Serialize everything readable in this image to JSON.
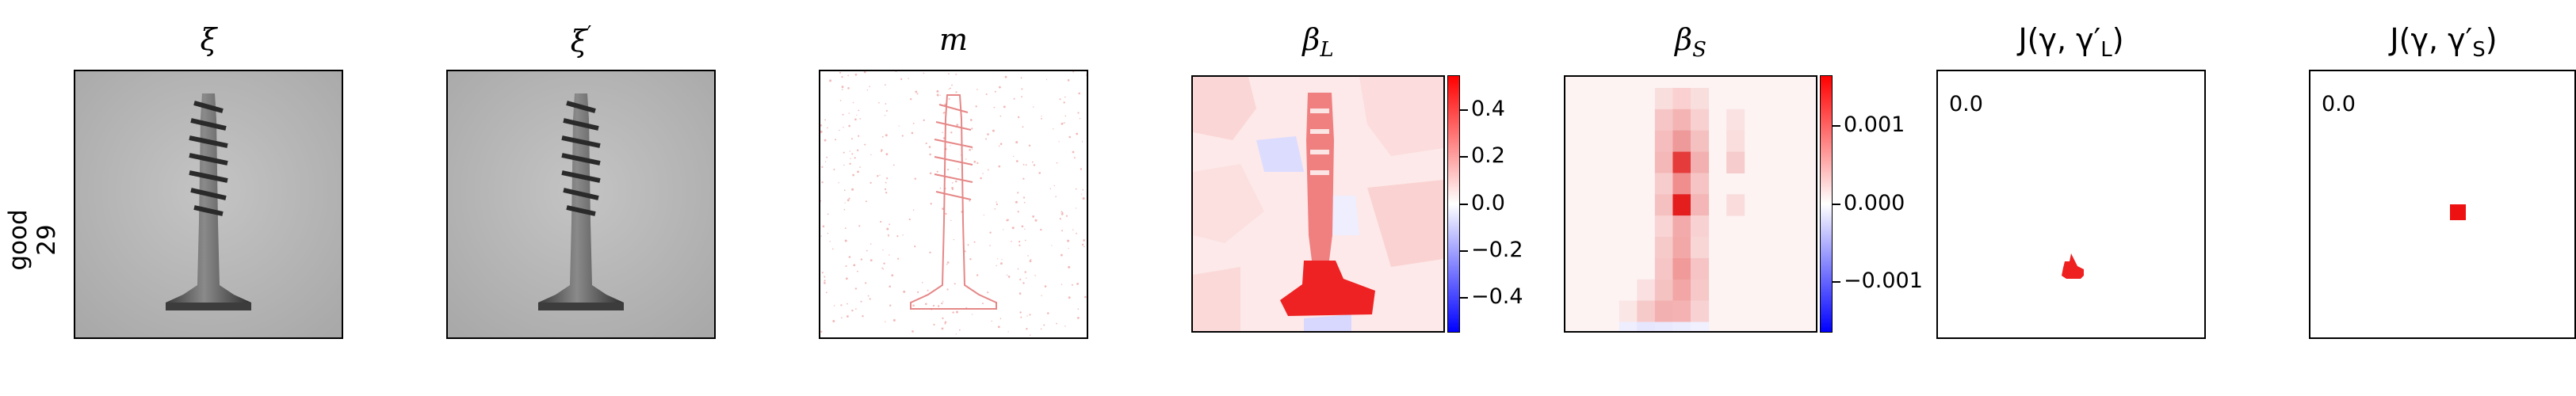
{
  "row_label": {
    "line1": "good",
    "line2": "29"
  },
  "panels": [
    {
      "id": "xi",
      "title": "ξ"
    },
    {
      "id": "xi_prime",
      "title": "ξ",
      "title_sup": "′"
    },
    {
      "id": "m",
      "title": "m"
    },
    {
      "id": "beta_L",
      "title": "β",
      "title_sub": "L"
    },
    {
      "id": "beta_S",
      "title": "β",
      "title_sub": "S"
    },
    {
      "id": "J_L",
      "title_prefix": "J(γ, γ′",
      "title_sub": "L",
      "title_suffix": ")",
      "value_label": "0.0"
    },
    {
      "id": "J_S",
      "title_prefix": "J(γ, γ′",
      "title_sub": "S",
      "title_suffix": ")",
      "value_label": "0.0"
    }
  ],
  "colorbars": {
    "beta_L": {
      "min": -0.55,
      "max": 0.55,
      "ticks": [
        "0.4",
        "0.2",
        "0.0",
        "−0.2",
        "−0.4"
      ],
      "tick_values": [
        0.4,
        0.2,
        0.0,
        -0.2,
        -0.4
      ]
    },
    "beta_S": {
      "min": -0.00165,
      "max": 0.00165,
      "ticks": [
        "0.001",
        "0.000",
        "−0.001"
      ],
      "tick_values": [
        0.001,
        0.0,
        -0.001
      ]
    }
  },
  "colors": {
    "positive": "#ff0000",
    "negative": "#0000ff",
    "neutral": "#ffffff",
    "photo_bg": "#b8b8b8",
    "screw": "#4a4a4a"
  }
}
